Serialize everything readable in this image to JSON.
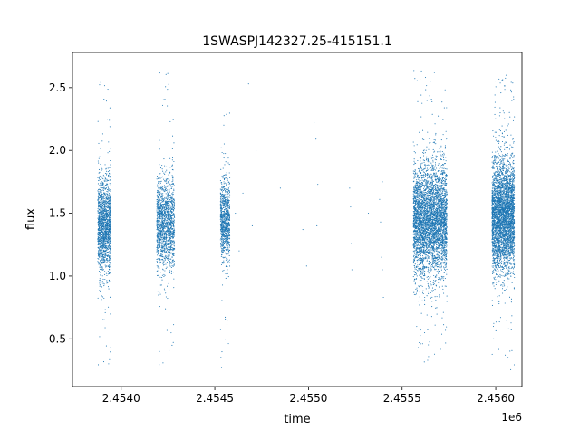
{
  "chart_data": {
    "type": "scatter",
    "title": "1SWASPJ142327.25-415151.1",
    "xlabel": "time",
    "ylabel": "flux",
    "x_offset_label": "1e6",
    "xlim": [
      2453740,
      2456140
    ],
    "ylim": [
      0.12,
      2.78
    ],
    "x_ticks": [
      2454000,
      2454500,
      2455000,
      2455500,
      2456000
    ],
    "x_tick_labels": [
      "2.4540",
      "2.4545",
      "2.4550",
      "2.4555",
      "2.4560"
    ],
    "y_ticks": [
      0.5,
      1.0,
      1.5,
      2.0,
      2.5
    ],
    "y_tick_labels": [
      "0.5",
      "1.0",
      "1.5",
      "2.0",
      "2.5"
    ],
    "grid": false,
    "marker_color": "#1f77b4",
    "clusters": [
      {
        "x_range": [
          2453875,
          2453945
        ],
        "center": 1.4,
        "spread": 0.18,
        "y_range": [
          0.24,
          2.63
        ],
        "n": 1600
      },
      {
        "x_range": [
          2454190,
          2454285
        ],
        "center": 1.42,
        "spread": 0.18,
        "y_range": [
          0.28,
          2.62
        ],
        "n": 1500
      },
      {
        "x_range": [
          2454530,
          2454580
        ],
        "center": 1.45,
        "spread": 0.16,
        "y_range": [
          0.25,
          2.42
        ],
        "n": 900
      },
      {
        "x_range": [
          2455560,
          2455740
        ],
        "center": 1.45,
        "spread": 0.22,
        "y_range": [
          0.25,
          2.65
        ],
        "n": 4200
      },
      {
        "x_range": [
          2455980,
          2456100
        ],
        "center": 1.48,
        "spread": 0.22,
        "y_range": [
          0.24,
          2.62
        ],
        "n": 3800
      }
    ],
    "sparse_points": [
      {
        "x": 2454610,
        "y": 1.5
      },
      {
        "x": 2454630,
        "y": 1.2
      },
      {
        "x": 2454650,
        "y": 1.66
      },
      {
        "x": 2454680,
        "y": 2.53
      },
      {
        "x": 2454700,
        "y": 1.4
      },
      {
        "x": 2454720,
        "y": 2.0
      },
      {
        "x": 2454850,
        "y": 1.7
      },
      {
        "x": 2454970,
        "y": 1.37
      },
      {
        "x": 2454990,
        "y": 1.08
      },
      {
        "x": 2455030,
        "y": 2.22
      },
      {
        "x": 2455040,
        "y": 2.09
      },
      {
        "x": 2455045,
        "y": 1.4
      },
      {
        "x": 2455050,
        "y": 1.73
      },
      {
        "x": 2455220,
        "y": 1.7
      },
      {
        "x": 2455225,
        "y": 1.55
      },
      {
        "x": 2455228,
        "y": 1.26
      },
      {
        "x": 2455232,
        "y": 1.05
      },
      {
        "x": 2455320,
        "y": 1.5
      },
      {
        "x": 2455380,
        "y": 1.61
      },
      {
        "x": 2455385,
        "y": 1.43
      },
      {
        "x": 2455390,
        "y": 1.15
      },
      {
        "x": 2455395,
        "y": 1.05
      },
      {
        "x": 2455400,
        "y": 0.83
      },
      {
        "x": 2455395,
        "y": 1.75
      }
    ]
  }
}
